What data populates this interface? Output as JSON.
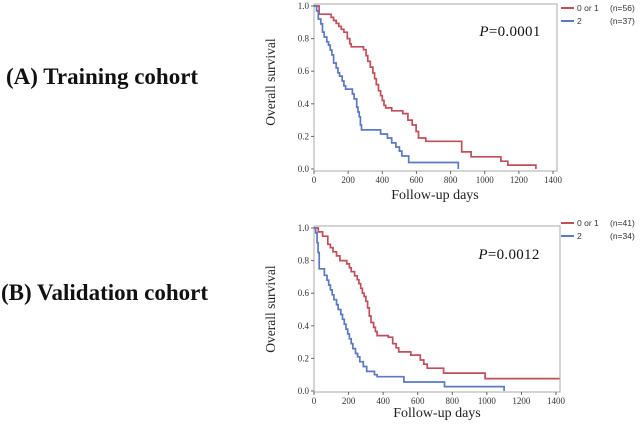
{
  "figure": {
    "panels": [
      {
        "heading": "(A) Training cohort",
        "p_italic": "P",
        "p_rest": "=0.0001"
      },
      {
        "heading": "(B) Validation cohort",
        "p_italic": "P",
        "p_rest": "=0.0012"
      }
    ]
  },
  "chart_data": [
    {
      "type": "line",
      "subtype": "kaplan-meier-step",
      "title": "(A) Training cohort",
      "xlabel": "Follow-up days",
      "ylabel": "Overall survival",
      "xlim": [
        0,
        1420
      ],
      "ylim": [
        0.0,
        1.0
      ],
      "xticks": [
        0,
        200,
        400,
        600,
        800,
        1000,
        1200,
        1400
      ],
      "yticks": [
        1.0,
        0.8,
        0.6,
        0.4,
        0.2,
        0.0
      ],
      "annotation": "P=0.0001",
      "legend_position": "top-right-outside",
      "grid": false,
      "series": [
        {
          "name": "0 or 1",
          "legend_label": "0 or 1",
          "n": 56,
          "n_label": "(n=56)",
          "color": "#c04f5a",
          "points": [
            [
              0,
              1.0
            ],
            [
              30,
              0.95
            ],
            [
              100,
              0.93
            ],
            [
              115,
              0.911
            ],
            [
              130,
              0.893
            ],
            [
              145,
              0.875
            ],
            [
              160,
              0.857
            ],
            [
              175,
              0.839
            ],
            [
              195,
              0.8
            ],
            [
              210,
              0.768
            ],
            [
              218,
              0.75
            ],
            [
              290,
              0.732
            ],
            [
              305,
              0.696
            ],
            [
              315,
              0.661
            ],
            [
              330,
              0.625
            ],
            [
              345,
              0.589
            ],
            [
              355,
              0.554
            ],
            [
              365,
              0.518
            ],
            [
              378,
              0.48
            ],
            [
              390,
              0.45
            ],
            [
              400,
              0.42
            ],
            [
              410,
              0.39
            ],
            [
              420,
              0.375
            ],
            [
              455,
              0.357
            ],
            [
              520,
              0.34
            ],
            [
              550,
              0.3
            ],
            [
              575,
              0.27
            ],
            [
              598,
              0.23
            ],
            [
              612,
              0.19
            ],
            [
              655,
              0.17
            ],
            [
              865,
              0.105
            ],
            [
              920,
              0.075
            ],
            [
              1095,
              0.048
            ],
            [
              1135,
              0.024
            ],
            [
              1300,
              0.0
            ]
          ]
        },
        {
          "name": "2",
          "legend_label": "2",
          "n": 37,
          "n_label": "(n=37)",
          "color": "#5b78c2",
          "points": [
            [
              0,
              1.0
            ],
            [
              15,
              0.97
            ],
            [
              25,
              0.92
            ],
            [
              40,
              0.89
            ],
            [
              50,
              0.84
            ],
            [
              60,
              0.81
            ],
            [
              75,
              0.78
            ],
            [
              85,
              0.76
            ],
            [
              95,
              0.73
            ],
            [
              105,
              0.7
            ],
            [
              115,
              0.65
            ],
            [
              130,
              0.62
            ],
            [
              140,
              0.59
            ],
            [
              150,
              0.57
            ],
            [
              165,
              0.54
            ],
            [
              175,
              0.51
            ],
            [
              185,
              0.49
            ],
            [
              225,
              0.46
            ],
            [
              235,
              0.43
            ],
            [
              250,
              0.38
            ],
            [
              258,
              0.35
            ],
            [
              265,
              0.32
            ],
            [
              272,
              0.27
            ],
            [
              278,
              0.24
            ],
            [
              390,
              0.215
            ],
            [
              430,
              0.19
            ],
            [
              455,
              0.16
            ],
            [
              480,
              0.135
            ],
            [
              500,
              0.11
            ],
            [
              515,
              0.08
            ],
            [
              555,
              0.04
            ],
            [
              845,
              0.0
            ]
          ]
        }
      ]
    },
    {
      "type": "line",
      "subtype": "kaplan-meier-step",
      "title": "(B) Validation cohort",
      "xlabel": "Follow-up days",
      "ylabel": "Overall survival",
      "xlim": [
        0,
        1430
      ],
      "ylim": [
        0.0,
        1.0
      ],
      "xticks": [
        0,
        200,
        400,
        600,
        800,
        1000,
        1200,
        1400
      ],
      "yticks": [
        1.0,
        0.8,
        0.6,
        0.4,
        0.2,
        0.0
      ],
      "annotation": "P=0.0012",
      "legend_position": "top-right-outside",
      "grid": false,
      "series": [
        {
          "name": "0 or 1",
          "legend_label": "0 or 1",
          "n": 41,
          "n_label": "(n=41)",
          "color": "#c04f5a",
          "points": [
            [
              0,
              1.0
            ],
            [
              25,
              0.976
            ],
            [
              50,
              0.95
            ],
            [
              80,
              0.9
            ],
            [
              95,
              0.88
            ],
            [
              110,
              0.854
            ],
            [
              130,
              0.829
            ],
            [
              150,
              0.8
            ],
            [
              190,
              0.78
            ],
            [
              205,
              0.756
            ],
            [
              215,
              0.732
            ],
            [
              235,
              0.707
            ],
            [
              250,
              0.683
            ],
            [
              260,
              0.658
            ],
            [
              270,
              0.63
            ],
            [
              280,
              0.6
            ],
            [
              290,
              0.58
            ],
            [
              300,
              0.55
            ],
            [
              310,
              0.51
            ],
            [
              320,
              0.46
            ],
            [
              330,
              0.42
            ],
            [
              345,
              0.39
            ],
            [
              355,
              0.365
            ],
            [
              365,
              0.34
            ],
            [
              430,
              0.33
            ],
            [
              455,
              0.29
            ],
            [
              475,
              0.265
            ],
            [
              490,
              0.24
            ],
            [
              560,
              0.22
            ],
            [
              615,
              0.19
            ],
            [
              635,
              0.165
            ],
            [
              655,
              0.14
            ],
            [
              750,
              0.11
            ],
            [
              990,
              0.076
            ],
            [
              1420,
              0.076
            ]
          ]
        },
        {
          "name": "2",
          "legend_label": "2",
          "n": 34,
          "n_label": "(n=34)",
          "color": "#5b78c2",
          "points": [
            [
              0,
              1.0
            ],
            [
              10,
              0.97
            ],
            [
              18,
              0.91
            ],
            [
              24,
              0.85
            ],
            [
              30,
              0.75
            ],
            [
              60,
              0.71
            ],
            [
              75,
              0.68
            ],
            [
              85,
              0.65
            ],
            [
              95,
              0.62
            ],
            [
              105,
              0.59
            ],
            [
              115,
              0.56
            ],
            [
              130,
              0.53
            ],
            [
              140,
              0.5
            ],
            [
              155,
              0.47
            ],
            [
              165,
              0.44
            ],
            [
              175,
              0.41
            ],
            [
              185,
              0.38
            ],
            [
              195,
              0.35
            ],
            [
              205,
              0.32
            ],
            [
              215,
              0.29
            ],
            [
              225,
              0.26
            ],
            [
              240,
              0.23
            ],
            [
              252,
              0.21
            ],
            [
              265,
              0.18
            ],
            [
              285,
              0.15
            ],
            [
              305,
              0.12
            ],
            [
              350,
              0.1
            ],
            [
              365,
              0.088
            ],
            [
              520,
              0.055
            ],
            [
              755,
              0.027
            ],
            [
              1100,
              0.0
            ]
          ]
        }
      ]
    }
  ],
  "style": {
    "frame_color": "#a8a8a8",
    "tick_color": "#666666",
    "tick_label_color": "#333333"
  }
}
